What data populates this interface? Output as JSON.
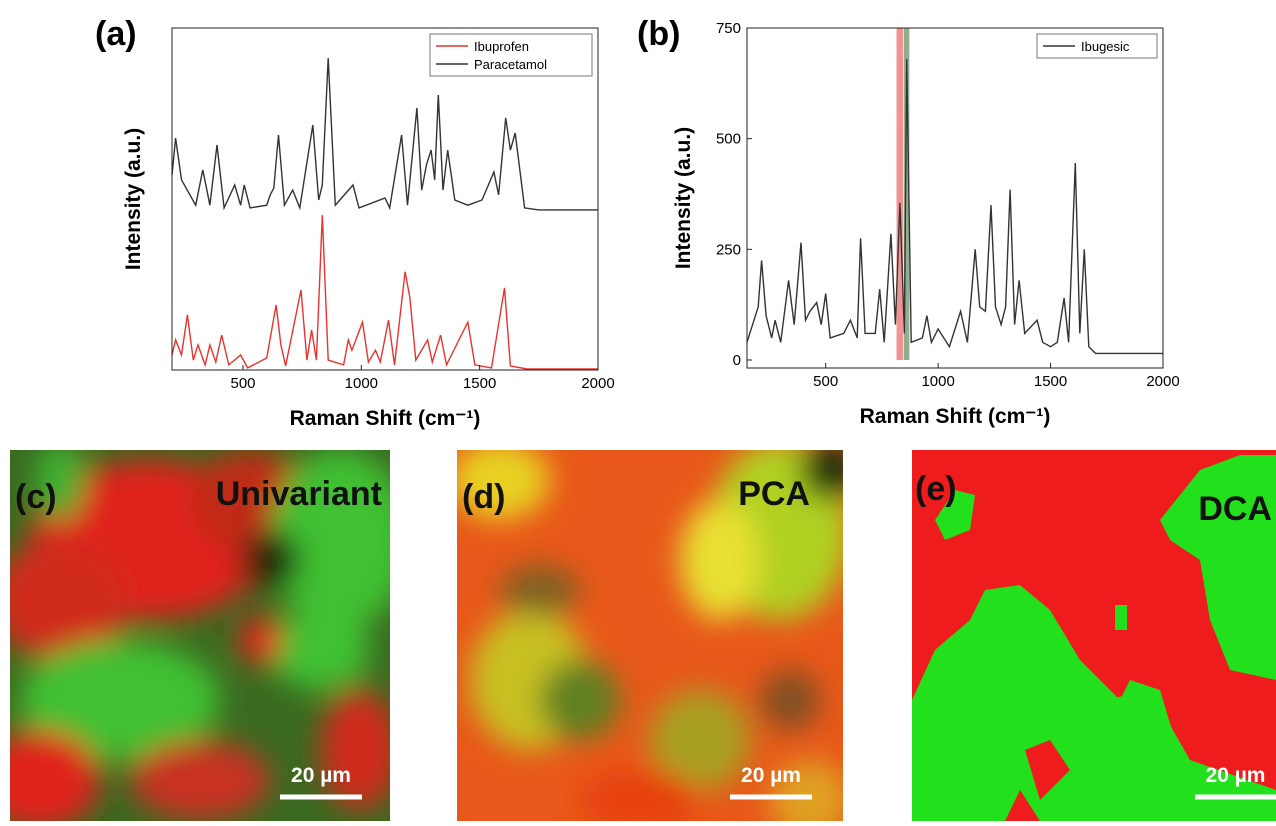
{
  "chart_data": [
    {
      "type": "line",
      "panel": "(a)",
      "x_label": "Raman Shift (cm⁻¹)",
      "y_label": "Intensity (a.u.)",
      "xlim": [
        200,
        2000
      ],
      "ylim": [
        0,
        100
      ],
      "xticks": [
        500,
        1000,
        1500,
        2000
      ],
      "legend": "top-right",
      "series": [
        {
          "name": "Ibuprofen",
          "color": "#e8332e",
          "x": [
            200,
            215,
            240,
            265,
            290,
            310,
            340,
            360,
            385,
            410,
            440,
            490,
            520,
            600,
            640,
            660,
            680,
            745,
            770,
            790,
            810,
            835,
            860,
            925,
            945,
            960,
            1005,
            1030,
            1060,
            1080,
            1115,
            1140,
            1185,
            1205,
            1230,
            1280,
            1300,
            1335,
            1360,
            1450,
            1480,
            1550,
            1605,
            1630,
            1700,
            2000
          ],
          "values": [
            4.4,
            8.8,
            4.4,
            16.1,
            2.9,
            7.3,
            1.5,
            7.3,
            2.3,
            10.2,
            1.5,
            4.4,
            0.6,
            3.5,
            19.0,
            7.3,
            1.2,
            23.4,
            2.9,
            11.7,
            2.9,
            45.3,
            2.9,
            1.5,
            8.8,
            5.8,
            14.0,
            2.3,
            5.8,
            2.3,
            14.6,
            1.5,
            28.7,
            21.1,
            2.9,
            8.8,
            2.3,
            10.2,
            1.5,
            14.0,
            1.5,
            0.6,
            24.0,
            1.2,
            0.3,
            0.3
          ]
        },
        {
          "name": "Paracetamol",
          "color": "#333333",
          "x": [
            200,
            215,
            240,
            300,
            330,
            360,
            390,
            420,
            465,
            490,
            505,
            530,
            600,
            615,
            630,
            650,
            675,
            710,
            740,
            795,
            820,
            835,
            860,
            890,
            965,
            990,
            1100,
            1120,
            1170,
            1195,
            1235,
            1255,
            1275,
            1295,
            1310,
            1325,
            1345,
            1365,
            1395,
            1450,
            1510,
            1560,
            1580,
            1610,
            1630,
            1650,
            1690,
            1750,
            2000
          ],
          "values": [
            57.0,
            67.8,
            55.6,
            48.2,
            58.5,
            48.2,
            65.8,
            47.4,
            54.1,
            48.2,
            54.1,
            47.4,
            48.2,
            51.2,
            53.2,
            68.7,
            48.2,
            52.6,
            47.4,
            71.6,
            49.7,
            54.1,
            91.2,
            48.2,
            54.1,
            47.4,
            50.3,
            47.4,
            68.7,
            48.2,
            76.6,
            52.6,
            59.9,
            64.3,
            55.6,
            80.4,
            52.6,
            64.3,
            49.7,
            48.2,
            49.7,
            57.9,
            51.2,
            73.7,
            64.3,
            69.3,
            47.4,
            46.8,
            46.8
          ]
        }
      ]
    },
    {
      "type": "line",
      "panel": "(b)",
      "x_label": "Raman Shift (cm⁻¹)",
      "y_label": "Intensity (a.u.)",
      "xlim": [
        150,
        2000
      ],
      "ylim": [
        0,
        750
      ],
      "xticks": [
        500,
        1000,
        1500,
        2000
      ],
      "yticks": [
        0,
        250,
        500,
        750
      ],
      "legend": "top-right",
      "bands": [
        {
          "range": [
            815,
            845
          ],
          "color": "#f08080"
        },
        {
          "range": [
            848,
            872
          ],
          "color": "#7fa07f"
        }
      ],
      "series": [
        {
          "name": "Ibugesic",
          "color": "#333333",
          "x": [
            150,
            200,
            215,
            235,
            260,
            275,
            300,
            335,
            360,
            390,
            410,
            430,
            460,
            480,
            500,
            520,
            580,
            610,
            640,
            655,
            675,
            720,
            740,
            760,
            790,
            810,
            830,
            850,
            860,
            880,
            930,
            950,
            970,
            1000,
            1050,
            1100,
            1130,
            1165,
            1185,
            1210,
            1235,
            1255,
            1280,
            1300,
            1320,
            1340,
            1360,
            1385,
            1440,
            1465,
            1500,
            1530,
            1560,
            1580,
            1610,
            1630,
            1650,
            1670,
            1700,
            2000
          ],
          "values": [
            40,
            120,
            225,
            100,
            50,
            90,
            40,
            180,
            80,
            265,
            90,
            110,
            130,
            80,
            150,
            50,
            60,
            90,
            50,
            275,
            60,
            60,
            160,
            40,
            285,
            80,
            355,
            60,
            680,
            40,
            50,
            100,
            40,
            70,
            30,
            110,
            40,
            250,
            120,
            110,
            350,
            120,
            80,
            120,
            385,
            80,
            180,
            60,
            90,
            40,
            30,
            40,
            140,
            40,
            445,
            60,
            250,
            30,
            15,
            15
          ]
        }
      ]
    }
  ],
  "panels": [
    {
      "label": "(c)",
      "title": "Univariant",
      "scale": "20 µm"
    },
    {
      "label": "(d)",
      "title": "PCA",
      "scale": "20 µm"
    },
    {
      "label": "(e)",
      "title": "DCA",
      "scale": "20 µm"
    }
  ]
}
